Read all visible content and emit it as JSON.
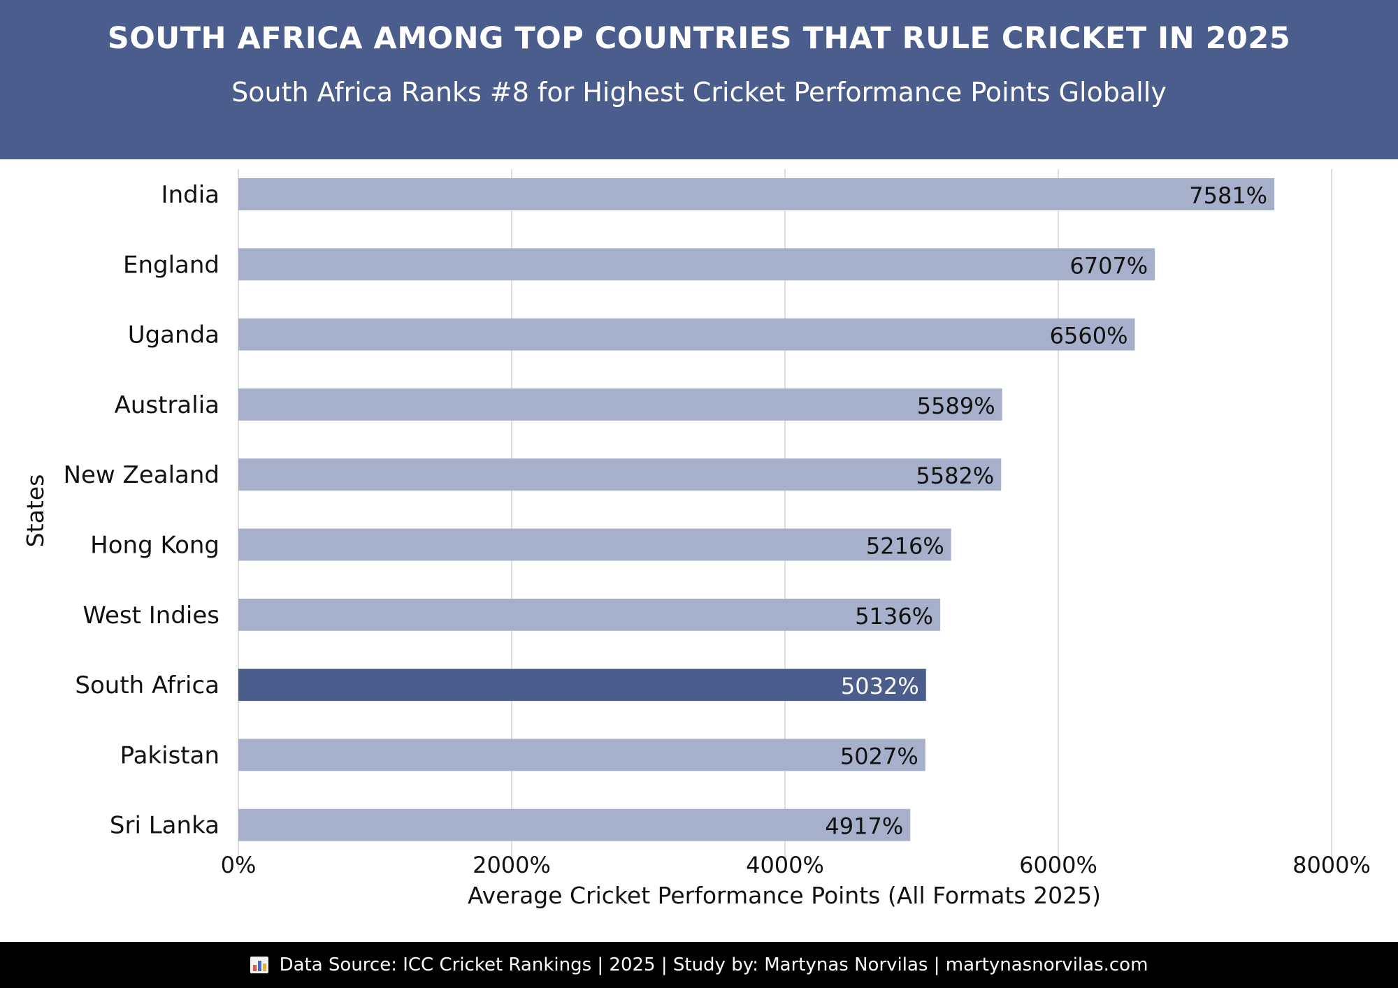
{
  "header": {
    "title": "SOUTH AFRICA AMONG TOP COUNTRIES THAT RULE CRICKET IN 2025",
    "subtitle": "South Africa Ranks #8 for Highest Cricket Performance Points Globally",
    "background_color": "#4a5d8c"
  },
  "chart_data": {
    "type": "bar",
    "orientation": "horizontal",
    "title": "SOUTH AFRICA AMONG TOP COUNTRIES THAT RULE CRICKET IN 2025",
    "subtitle": "South Africa Ranks #8 for Highest Cricket Performance Points Globally",
    "xlabel": "Average Cricket Performance Points (All Formats 2025)",
    "ylabel": "States",
    "categories": [
      "India",
      "England",
      "Uganda",
      "Australia",
      "New Zealand",
      "Hong Kong",
      "West Indies",
      "South Africa",
      "Pakistan",
      "Sri Lanka"
    ],
    "values": [
      7581,
      6707,
      6560,
      5589,
      5582,
      5216,
      5136,
      5032,
      5027,
      4917
    ],
    "value_labels": [
      "7581%",
      "6707%",
      "6560%",
      "5589%",
      "5582%",
      "5216%",
      "5136%",
      "5032%",
      "5027%",
      "4917%"
    ],
    "xlim": [
      0,
      8000
    ],
    "xticks": [
      0,
      2000,
      4000,
      6000,
      8000
    ],
    "xtick_labels": [
      "0%",
      "2000%",
      "4000%",
      "6000%",
      "8000%"
    ],
    "highlight_category": "South Africa",
    "bar_color": "#a6b0cb",
    "highlight_color": "#4a5d8c",
    "grid": "vertical",
    "legend": "none"
  },
  "footer": {
    "text": "Data Source: ICC Cricket Rankings | 2025 | Study by: Martynas Norvilas | martynasnorvilas.com",
    "icon": "bar-chart-icon",
    "background_color": "#000000"
  }
}
